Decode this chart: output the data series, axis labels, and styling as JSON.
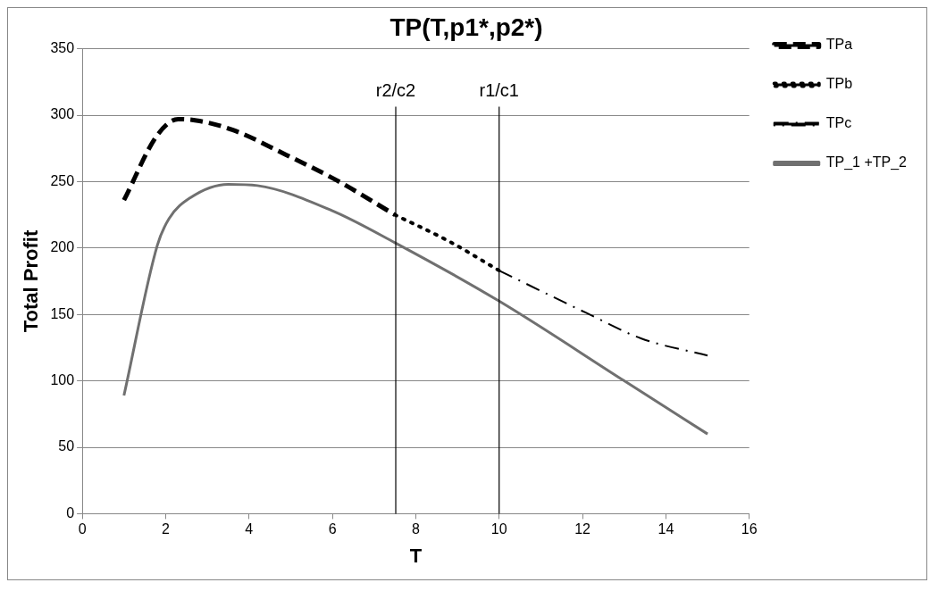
{
  "chart_data": {
    "type": "line",
    "title": "TP(T,p1*,p2*)",
    "xlabel": "T",
    "ylabel": "Total Profit",
    "xlim": [
      0,
      16
    ],
    "xticks": [
      0,
      2,
      4,
      6,
      8,
      10,
      12,
      14,
      16
    ],
    "ylim": [
      0,
      350
    ],
    "yticks": [
      0,
      50,
      100,
      150,
      200,
      250,
      300,
      350
    ],
    "grid": "y",
    "legend": "right",
    "marker": "none",
    "series": [
      {
        "name": "TPa",
        "color": "#000000",
        "line_style": "dashed",
        "x": [
          1,
          1.8,
          2.3,
          2.74,
          3.6,
          4.9,
          6.1,
          7.5
        ],
        "values": [
          236,
          285,
          297,
          296,
          289,
          270,
          251,
          225
        ]
      },
      {
        "name": "TPb",
        "color": "#000000",
        "line_style": "dotted",
        "x": [
          7.5,
          8.8,
          10
        ],
        "values": [
          225,
          205,
          183
        ]
      },
      {
        "name": "TPc",
        "color": "#000000",
        "line_style": "dashdot",
        "x": [
          10,
          12.1,
          13.4,
          15
        ],
        "values": [
          183,
          151,
          132,
          119
        ]
      },
      {
        "name": "TP_1\n+TP_2",
        "color": "#707070",
        "line_style": "solid",
        "x": [
          1,
          1.8,
          2.08,
          2.6,
          3.5,
          4.2,
          6,
          7.5,
          10,
          13,
          15
        ],
        "values": [
          89,
          202,
          222,
          238,
          248,
          247,
          228,
          204,
          160,
          100,
          60
        ]
      }
    ],
    "ref_lines": [
      {
        "axis": "x",
        "value": 7.52,
        "label": "r2/c2",
        "color": "#000000"
      },
      {
        "axis": "x",
        "value": 10,
        "label": "r1/c1",
        "color": "#000000"
      }
    ]
  }
}
